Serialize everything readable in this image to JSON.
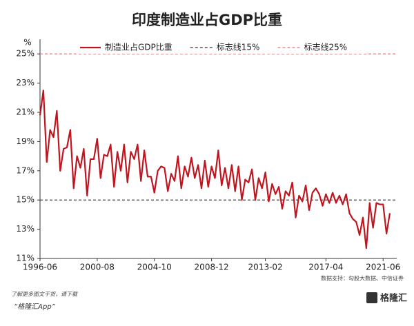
{
  "chart_data": {
    "type": "line",
    "title": "印度制造业占GDP比重",
    "ylabel": "%",
    "categories": [
      "1996-06",
      null,
      null,
      null,
      null,
      null,
      null,
      null,
      null,
      null,
      null,
      null,
      null,
      null,
      null,
      null,
      null,
      "2000-08",
      null,
      null,
      null,
      null,
      null,
      null,
      null,
      null,
      null,
      null,
      null,
      null,
      null,
      null,
      null,
      null,
      "2004-10",
      null,
      null,
      null,
      null,
      null,
      null,
      null,
      null,
      null,
      null,
      null,
      null,
      null,
      null,
      null,
      null,
      "2008-12",
      null,
      null,
      null,
      null,
      null,
      null,
      null,
      null,
      null,
      null,
      null,
      null,
      null,
      null,
      null,
      "2013-02",
      null,
      null,
      null,
      null,
      null,
      null,
      null,
      null,
      null,
      null,
      null,
      null,
      null,
      null,
      null,
      null,
      null,
      "2017-04",
      null,
      null,
      null,
      null,
      null,
      null,
      null,
      null,
      null,
      null,
      null,
      null,
      null,
      null,
      null,
      null,
      "2021-06",
      null,
      null
    ],
    "series": [
      {
        "name": "制造业占GDP比重",
        "color": "#c0141e",
        "values": [
          20.8,
          22.5,
          17.6,
          19.8,
          19.3,
          21.1,
          17.0,
          18.5,
          18.6,
          19.8,
          15.8,
          18.0,
          17.2,
          18.5,
          15.3,
          17.8,
          17.8,
          19.2,
          16.5,
          18.1,
          18.0,
          18.8,
          15.9,
          18.3,
          17.0,
          18.8,
          16.2,
          18.3,
          17.8,
          18.8,
          16.3,
          18.4,
          16.6,
          16.6,
          15.5,
          17.0,
          17.3,
          17.2,
          15.6,
          16.8,
          16.3,
          18.0,
          15.8,
          17.3,
          16.6,
          17.9,
          16.5,
          17.4,
          15.8,
          17.7,
          15.9,
          17.3,
          16.5,
          18.4,
          16.0,
          17.2,
          15.8,
          17.4,
          15.6,
          17.3,
          15.0,
          16.4,
          16.2,
          17.1,
          15.0,
          16.5,
          15.8,
          16.9,
          14.9,
          16.1,
          15.4,
          15.9,
          14.4,
          15.6,
          15.3,
          16.2,
          13.8,
          15.3,
          14.9,
          16.0,
          14.3,
          15.5,
          15.8,
          15.4,
          14.6,
          15.4,
          14.8,
          15.5,
          14.8,
          15.3,
          14.7,
          15.4,
          14.1,
          13.7,
          13.5,
          12.6,
          13.8,
          11.7,
          14.8,
          13.1,
          14.8,
          14.7,
          14.7,
          12.7,
          14.1
        ]
      }
    ],
    "reference_lines": [
      {
        "name": "标志线15%",
        "value": 15,
        "color": "#333333"
      },
      {
        "name": "标志线25%",
        "value": 25,
        "color": "#e0707a"
      }
    ],
    "ylim": [
      11,
      26
    ],
    "yticks": [
      {
        "value": 11,
        "label": "11%"
      },
      {
        "value": 13,
        "label": "13%"
      },
      {
        "value": 15,
        "label": "15%"
      },
      {
        "value": 17,
        "label": "17%"
      },
      {
        "value": 19,
        "label": "19%"
      },
      {
        "value": 21,
        "label": "21%"
      },
      {
        "value": 23,
        "label": "23%"
      },
      {
        "value": 25,
        "label": "25%"
      }
    ],
    "source": "数据支持：勾股大数据、中信证券"
  },
  "footer": {
    "line1": "了解更多图文干货，请下载",
    "line2": "“格隆汇App”",
    "logo": "格隆汇"
  }
}
